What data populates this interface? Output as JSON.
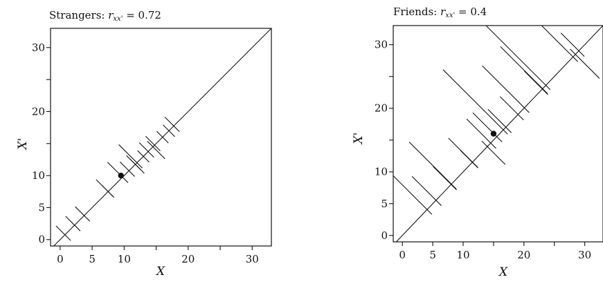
{
  "chart_data": [
    {
      "type": "scatter",
      "title": "Strangers: ",
      "title_symbol": "r",
      "title_subscript": "xx'",
      "title_value": " = 0.72",
      "xlabel": "X",
      "ylabel": "X'",
      "xlim": [
        -1.5,
        33
      ],
      "ylim": [
        -1,
        33
      ],
      "x_ticks": [
        0,
        5,
        10,
        20,
        30
      ],
      "y_ticks": [
        0,
        5,
        10,
        20,
        30
      ],
      "x_tick_labels": [
        "0",
        "5",
        "10",
        "20",
        "30"
      ],
      "y_tick_labels": [
        "0",
        "5",
        "10",
        "20",
        "30"
      ],
      "identity_line": true,
      "mean_point": {
        "x": 9.5,
        "y": 10
      },
      "pairs": [
        {
          "x": 0.5,
          "y": 1
        },
        {
          "x": 2.0,
          "y": 2.5
        },
        {
          "x": 3.5,
          "y": 4
        },
        {
          "x": 7.0,
          "y": 8
        },
        {
          "x": 7.5,
          "y": 7.5
        },
        {
          "x": 9.0,
          "y": 10.5
        },
        {
          "x": 10.5,
          "y": 11
        },
        {
          "x": 11.5,
          "y": 12
        },
        {
          "x": 11.0,
          "y": 13
        },
        {
          "x": 12.0,
          "y": 11.5
        },
        {
          "x": 13.0,
          "y": 13
        },
        {
          "x": 13.5,
          "y": 14
        },
        {
          "x": 14.5,
          "y": 15
        },
        {
          "x": 15.0,
          "y": 14
        },
        {
          "x": 16.0,
          "y": 16
        },
        {
          "x": 17.0,
          "y": 17
        },
        {
          "x": 17.5,
          "y": 18
        }
      ]
    },
    {
      "type": "scatter",
      "title": "Friends: ",
      "title_symbol": "r",
      "title_subscript": "xx'",
      "title_value": " = 0.4",
      "xlabel": "X",
      "ylabel": "X'",
      "xlim": [
        -1.5,
        33
      ],
      "ylim": [
        -1,
        33
      ],
      "x_ticks": [
        0,
        5,
        10,
        20,
        30
      ],
      "y_ticks": [
        0,
        5,
        10,
        20,
        30
      ],
      "x_tick_labels": [
        "0",
        "5",
        "10",
        "20",
        "30"
      ],
      "y_tick_labels": [
        "0",
        "5",
        "10",
        "20",
        "30"
      ],
      "identity_line": true,
      "mean_point": {
        "x": 15,
        "y": 16
      },
      "pairs": [
        {
          "x": 1,
          "y": 7
        },
        {
          "x": 4,
          "y": 7
        },
        {
          "x": 5,
          "y": 11
        },
        {
          "x": 7,
          "y": 9
        },
        {
          "x": 10,
          "y": 13
        },
        {
          "x": 11,
          "y": 12
        },
        {
          "x": 12,
          "y": 21
        },
        {
          "x": 13,
          "y": 16
        },
        {
          "x": 14,
          "y": 17
        },
        {
          "x": 15,
          "y": 13
        },
        {
          "x": 16,
          "y": 18
        },
        {
          "x": 17,
          "y": 23
        },
        {
          "x": 18,
          "y": 20
        },
        {
          "x": 19,
          "y": 28
        },
        {
          "x": 20,
          "y": 26
        },
        {
          "x": 22,
          "y": 24
        },
        {
          "x": 25,
          "y": 31
        },
        {
          "x": 28,
          "y": 30
        },
        {
          "x": 30,
          "y": 27
        }
      ]
    }
  ]
}
